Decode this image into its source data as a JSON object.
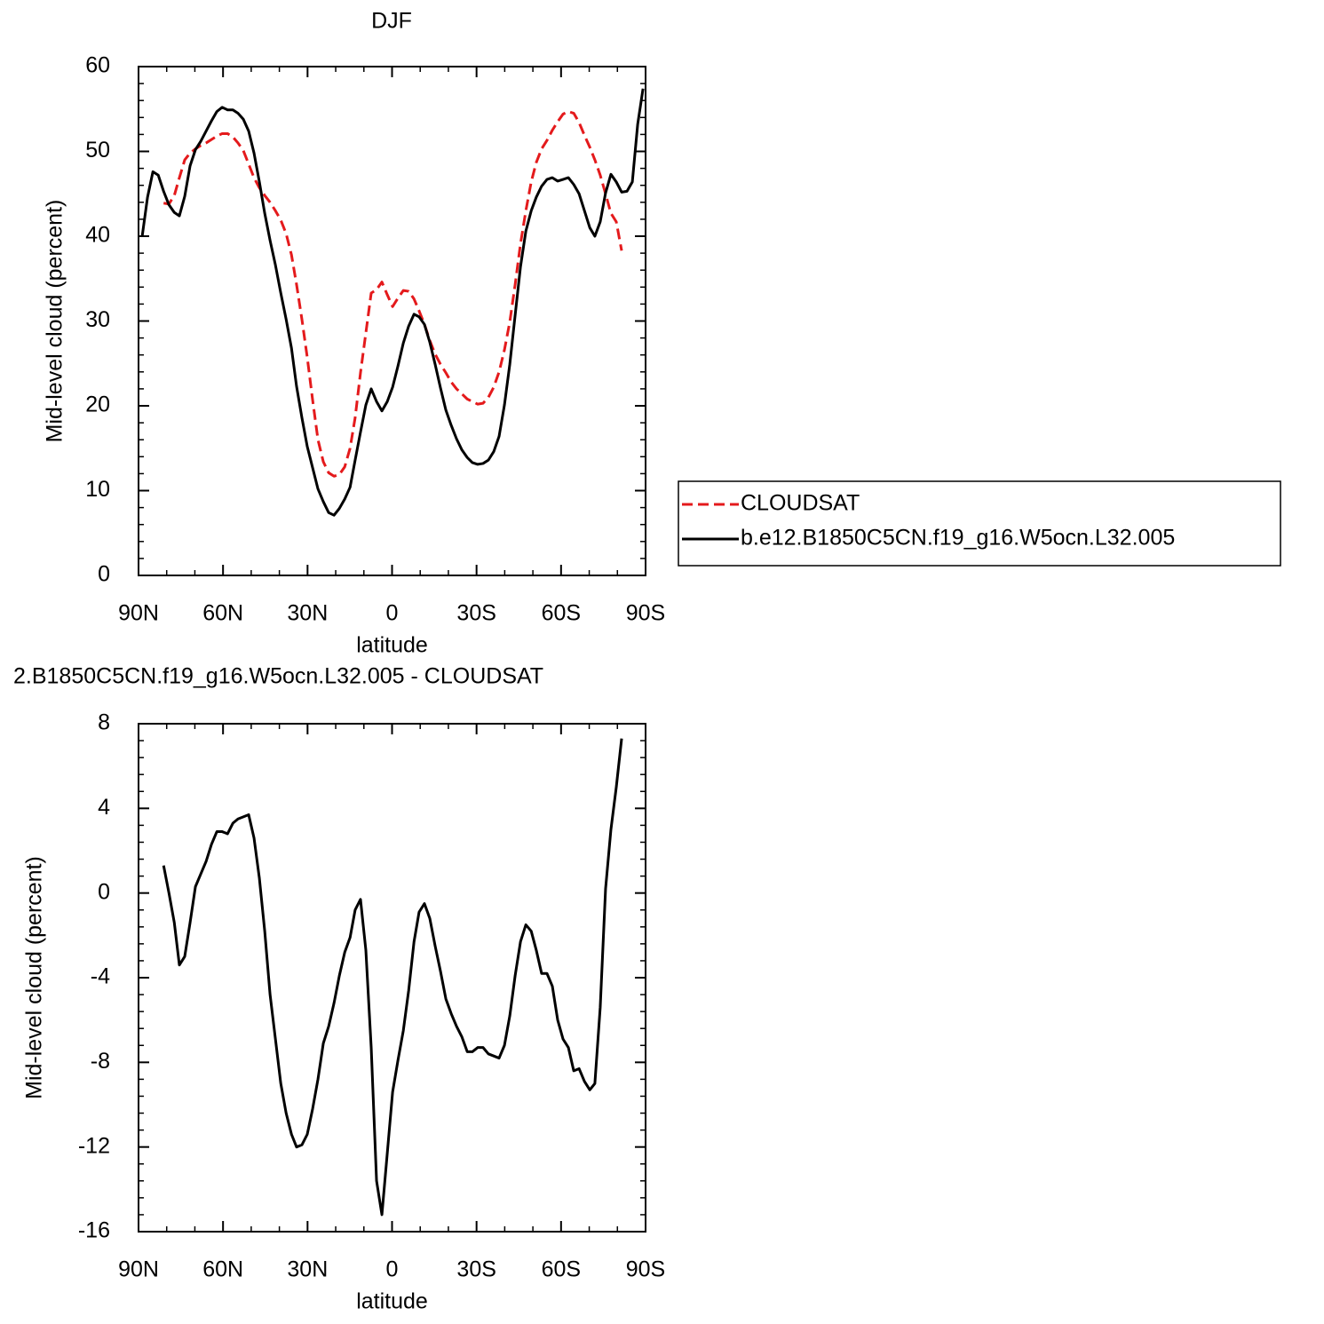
{
  "chart_data": [
    {
      "type": "line",
      "title": "DJF",
      "xlabel": "latitude",
      "ylabel": "Mid-level cloud (percent)",
      "x": [
        88.7,
        86.8,
        84.9,
        83.0,
        81.1,
        79.2,
        77.3,
        75.5,
        73.6,
        71.7,
        69.8,
        67.9,
        66.0,
        64.1,
        62.2,
        60.3,
        58.4,
        56.5,
        54.7,
        52.8,
        50.9,
        49.0,
        47.1,
        45.2,
        43.3,
        41.4,
        39.5,
        37.6,
        35.7,
        33.9,
        32.0,
        30.1,
        28.2,
        26.3,
        24.4,
        22.5,
        20.6,
        18.7,
        16.8,
        14.9,
        13.1,
        11.2,
        9.3,
        7.4,
        5.5,
        3.6,
        1.7,
        -0.2,
        -2.1,
        -4.0,
        -5.9,
        -7.8,
        -9.6,
        -11.5,
        -13.4,
        -15.3,
        -17.2,
        -19.1,
        -21.0,
        -22.9,
        -24.8,
        -26.7,
        -28.5,
        -30.4,
        -32.3,
        -34.2,
        -36.1,
        -38.0,
        -39.9,
        -41.8,
        -43.7,
        -45.6,
        -47.5,
        -49.4,
        -51.2,
        -53.1,
        -55.0,
        -56.9,
        -58.8,
        -60.7,
        -62.6,
        -64.5,
        -66.4,
        -68.3,
        -70.2,
        -72.0,
        -73.9,
        -75.8,
        -77.7,
        -79.6,
        -81.5,
        -83.4,
        -85.3,
        -87.2,
        -89.1
      ],
      "series": [
        {
          "name": "CLOUDSAT",
          "color": "#e41a1c",
          "dash": "dashed",
          "values": [
            null,
            null,
            null,
            null,
            43.9,
            43.8,
            44.8,
            46.9,
            49.0,
            49.8,
            50.3,
            50.7,
            51.0,
            51.4,
            51.8,
            52.1,
            52.1,
            51.7,
            51.0,
            50.1,
            48.5,
            46.9,
            45.7,
            44.8,
            44.0,
            43.0,
            41.9,
            40.3,
            37.8,
            34.3,
            30.2,
            25.7,
            20.7,
            16.0,
            13.4,
            12.1,
            11.7,
            11.9,
            12.8,
            15.0,
            18.6,
            23.9,
            28.6,
            33.3,
            33.7,
            34.6,
            33.1,
            31.7,
            32.7,
            33.6,
            33.5,
            32.6,
            31.2,
            29.6,
            27.7,
            26.1,
            24.9,
            23.9,
            22.8,
            22.0,
            21.4,
            20.8,
            20.5,
            20.2,
            20.3,
            21.0,
            22.2,
            24.0,
            26.6,
            29.9,
            34.3,
            39.1,
            43.0,
            46.4,
            48.7,
            50.3,
            51.3,
            52.5,
            53.5,
            54.4,
            54.7,
            54.5,
            53.4,
            51.9,
            50.5,
            49.0,
            47.2,
            45.0,
            42.7,
            41.7,
            38.3,
            null,
            null,
            null,
            null
          ]
        },
        {
          "name": "b.e12.B1850C5CN.f19_g16.W5ocn.L32.005",
          "color": "#000000",
          "dash": "solid",
          "values": [
            40.0,
            44.6,
            47.6,
            47.2,
            45.3,
            43.7,
            42.8,
            42.4,
            44.7,
            48.3,
            50.2,
            51.2,
            52.4,
            53.6,
            54.7,
            55.2,
            54.9,
            54.9,
            54.5,
            53.8,
            52.4,
            49.8,
            46.4,
            42.7,
            39.5,
            36.6,
            33.3,
            30.2,
            26.8,
            22.3,
            18.6,
            15.2,
            12.7,
            10.2,
            8.7,
            7.4,
            7.1,
            7.9,
            9.0,
            10.4,
            13.6,
            16.9,
            20.1,
            22.0,
            20.5,
            19.4,
            20.5,
            22.2,
            24.7,
            27.4,
            29.4,
            30.8,
            30.5,
            29.6,
            27.5,
            24.9,
            22.1,
            19.5,
            17.7,
            16.1,
            14.8,
            13.9,
            13.3,
            13.1,
            13.2,
            13.6,
            14.6,
            16.4,
            20.1,
            24.9,
            30.7,
            36.4,
            40.6,
            43.0,
            44.6,
            45.9,
            46.7,
            46.9,
            46.5,
            46.7,
            46.9,
            46.1,
            45.0,
            43.0,
            41.0,
            40.0,
            41.7,
            45.1,
            47.3,
            46.4,
            45.2,
            45.3,
            46.4,
            53.2,
            57.4
          ]
        }
      ],
      "xlim": [
        90,
        -90
      ],
      "xticks": [
        {
          "value": 90,
          "label": "90N"
        },
        {
          "value": 60,
          "label": "60N"
        },
        {
          "value": 30,
          "label": "30N"
        },
        0,
        {
          "value": -30,
          "label": "30S"
        },
        {
          "value": -60,
          "label": "60S"
        },
        {
          "value": -90,
          "label": "90S"
        }
      ],
      "ylim": [
        0,
        60
      ],
      "yticks": [
        0,
        10,
        20,
        30,
        40,
        50,
        60
      ],
      "legend": "outside right"
    },
    {
      "type": "line",
      "title": "2.B1850C5CN.f19_g16.W5ocn.L32.005 - CLOUDSAT",
      "xlabel": "latitude",
      "ylabel": "Mid-level cloud (percent)",
      "x": [
        81.1,
        79.2,
        77.3,
        75.5,
        73.6,
        71.7,
        69.8,
        67.9,
        66.0,
        64.1,
        62.2,
        60.3,
        58.4,
        56.5,
        54.7,
        52.8,
        50.9,
        49.0,
        47.1,
        45.2,
        43.3,
        41.4,
        39.5,
        37.6,
        35.7,
        33.9,
        32.0,
        30.1,
        28.2,
        26.3,
        24.4,
        22.5,
        20.6,
        18.7,
        16.8,
        14.9,
        13.1,
        11.2,
        9.3,
        7.4,
        5.5,
        3.6,
        1.7,
        -0.2,
        -2.1,
        -4.0,
        -5.9,
        -7.8,
        -9.6,
        -11.5,
        -13.4,
        -15.3,
        -17.2,
        -19.1,
        -21.0,
        -22.9,
        -24.8,
        -26.7,
        -28.5,
        -30.4,
        -32.3,
        -34.2,
        -36.1,
        -38.0,
        -39.9,
        -41.8,
        -43.7,
        -45.6,
        -47.5,
        -49.4,
        -51.2,
        -53.1,
        -55.0,
        -56.9,
        -58.8,
        -60.7,
        -62.6,
        -64.5,
        -66.4,
        -68.3,
        -70.2,
        -72.0,
        -73.9,
        -75.8,
        -77.7,
        -79.6,
        -81.5
      ],
      "series": [
        {
          "color": "#000000",
          "dash": "solid",
          "values": [
            1.3,
            0.0,
            -1.4,
            -3.4,
            -3.0,
            -1.4,
            0.3,
            0.9,
            1.5,
            2.3,
            2.9,
            2.9,
            2.8,
            3.3,
            3.5,
            3.6,
            3.7,
            2.6,
            0.7,
            -1.8,
            -4.8,
            -6.9,
            -9.0,
            -10.4,
            -11.4,
            -12.0,
            -11.9,
            -11.4,
            -10.2,
            -8.8,
            -7.1,
            -6.3,
            -5.2,
            -3.9,
            -2.8,
            -2.1,
            -0.8,
            -0.3,
            -2.7,
            -7.3,
            -13.6,
            -15.2,
            -12.3,
            -9.4,
            -7.9,
            -6.5,
            -4.6,
            -2.3,
            -0.9,
            -0.5,
            -1.2,
            -2.5,
            -3.7,
            -5.0,
            -5.7,
            -6.3,
            -6.8,
            -7.5,
            -7.5,
            -7.3,
            -7.3,
            -7.6,
            -7.7,
            -7.8,
            -7.2,
            -5.8,
            -3.9,
            -2.3,
            -1.5,
            -1.8,
            -2.7,
            -3.8,
            -3.8,
            -4.4,
            -6.0,
            -6.9,
            -7.3,
            -8.4,
            -8.3,
            -8.9,
            -9.3,
            -9.0,
            -5.4,
            0.2,
            3.0,
            5.0,
            7.3
          ]
        }
      ],
      "xlim": [
        90,
        -90
      ],
      "xticks": [
        {
          "value": 90,
          "label": "90N"
        },
        {
          "value": 60,
          "label": "60N"
        },
        {
          "value": 30,
          "label": "30N"
        },
        0,
        {
          "value": -30,
          "label": "30S"
        },
        {
          "value": -60,
          "label": "60S"
        },
        {
          "value": -90,
          "label": "90S"
        }
      ],
      "ylim": [
        -16,
        8
      ],
      "yticks": [
        -16,
        -12,
        -8,
        -4,
        0,
        4,
        8
      ]
    }
  ]
}
